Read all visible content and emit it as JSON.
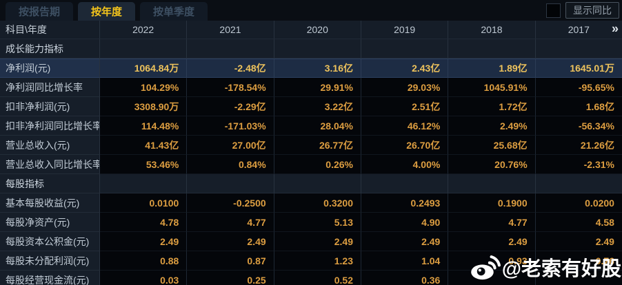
{
  "tabs": [
    {
      "label": "按报告期",
      "active": false
    },
    {
      "label": "按年度",
      "active": true
    },
    {
      "label": "按单季度",
      "active": false
    }
  ],
  "controls": {
    "show_yoy_label": "显示同比",
    "checkbox_checked": false
  },
  "table": {
    "corner_label": "科目\\年度",
    "years": [
      "2022",
      "2021",
      "2020",
      "2019",
      "2018",
      "2017"
    ],
    "more_icon": "»",
    "rows": [
      {
        "type": "section",
        "label": "成长能力指标"
      },
      {
        "type": "data",
        "label": "净利润(元)",
        "highlight": true,
        "values": [
          "1064.84万",
          "-2.48亿",
          "3.16亿",
          "2.43亿",
          "1.89亿",
          "1645.01万"
        ]
      },
      {
        "type": "data",
        "label": "净利润同比增长率",
        "values": [
          "104.29%",
          "-178.54%",
          "29.91%",
          "29.03%",
          "1045.91%",
          "-95.65%"
        ]
      },
      {
        "type": "data",
        "label": "扣非净利润(元)",
        "values": [
          "3308.90万",
          "-2.29亿",
          "3.22亿",
          "2.51亿",
          "1.72亿",
          "1.68亿"
        ]
      },
      {
        "type": "data",
        "label": "扣非净利润同比增长率",
        "values": [
          "114.48%",
          "-171.03%",
          "28.04%",
          "46.12%",
          "2.49%",
          "-56.34%"
        ]
      },
      {
        "type": "data",
        "label": "营业总收入(元)",
        "values": [
          "41.43亿",
          "27.00亿",
          "26.77亿",
          "26.70亿",
          "25.68亿",
          "21.26亿"
        ]
      },
      {
        "type": "data",
        "label": "营业总收入同比增长率",
        "values": [
          "53.46%",
          "0.84%",
          "0.26%",
          "4.00%",
          "20.76%",
          "-2.31%"
        ]
      },
      {
        "type": "section",
        "label": "每股指标"
      },
      {
        "type": "data",
        "label": "基本每股收益(元)",
        "values": [
          "0.0100",
          "-0.2500",
          "0.3200",
          "0.2493",
          "0.1900",
          "0.0200"
        ]
      },
      {
        "type": "data",
        "label": "每股净资产(元)",
        "values": [
          "4.78",
          "4.77",
          "5.13",
          "4.90",
          "4.77",
          "4.58"
        ]
      },
      {
        "type": "data",
        "label": "每股资本公积金(元)",
        "values": [
          "2.49",
          "2.49",
          "2.49",
          "2.49",
          "2.49",
          "2.49"
        ]
      },
      {
        "type": "data",
        "label": "每股未分配利润(元)",
        "values": [
          "0.88",
          "0.87",
          "1.23",
          "1.04",
          "0.93",
          "0.76"
        ]
      },
      {
        "type": "data",
        "label": "每股经营现金流(元)",
        "values": [
          "0.03",
          "0.25",
          "0.52",
          "0.36",
          "",
          ""
        ]
      }
    ]
  },
  "watermark": {
    "text": "@老索有好股",
    "icon": "weibo-icon"
  },
  "colors": {
    "tab_active_text": "#f3c41c",
    "value_text": "#dd9e41",
    "highlight_value_text": "#eec35c",
    "highlight_row_bg": "#1d2c44",
    "label_column_bg": "#161e29",
    "data_cell_bg": "#04060a",
    "header_text": "#bfc9d3"
  }
}
